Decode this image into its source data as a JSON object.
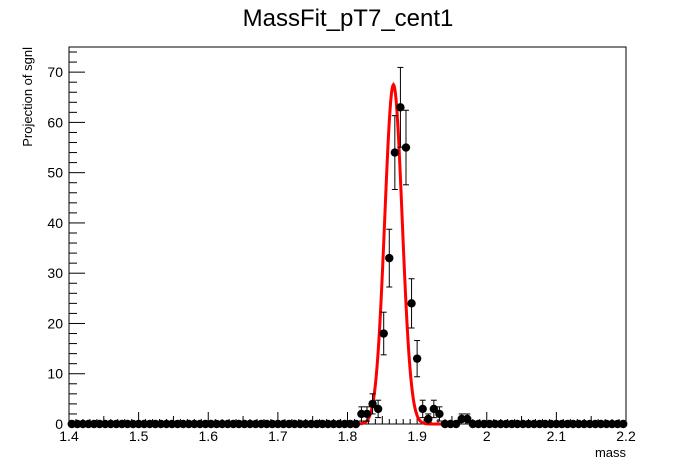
{
  "chart_data": {
    "type": "scatter",
    "title": "MassFit_pT7_cent1",
    "xlabel": "mass",
    "ylabel": "Projection of sgnl",
    "xlim": [
      1.4,
      2.2
    ],
    "ylim": [
      0,
      75
    ],
    "x_ticks": [
      "1.4",
      "1.5",
      "1.6",
      "1.7",
      "1.8",
      "1.9",
      "2",
      "2.1",
      "2.2"
    ],
    "y_ticks": [
      "0",
      "10",
      "20",
      "30",
      "40",
      "50",
      "60",
      "70"
    ],
    "grid": false,
    "bin_width": 0.008,
    "series": [
      {
        "style": "points-with-error-bars",
        "color": "#000000",
        "x": [
          1.816,
          1.824,
          1.832,
          1.84,
          1.848,
          1.856,
          1.864,
          1.872,
          1.88,
          1.888,
          1.896,
          1.904,
          1.912,
          1.92,
          1.928,
          1.96,
          1.968
        ],
        "y": [
          2,
          2,
          4,
          3,
          18,
          33,
          54,
          63,
          55,
          24,
          13,
          3,
          1,
          3,
          2,
          1,
          1
        ],
        "other_bins_value": 0
      },
      {
        "style": "line",
        "color": "#ff0000",
        "fit": "gaussian",
        "peak": 67.5,
        "mean": 1.866,
        "sigma": 0.0125,
        "secondary_peak": 1.0,
        "secondary_mean": 1.968,
        "secondary_sigma": 0.005
      }
    ]
  }
}
